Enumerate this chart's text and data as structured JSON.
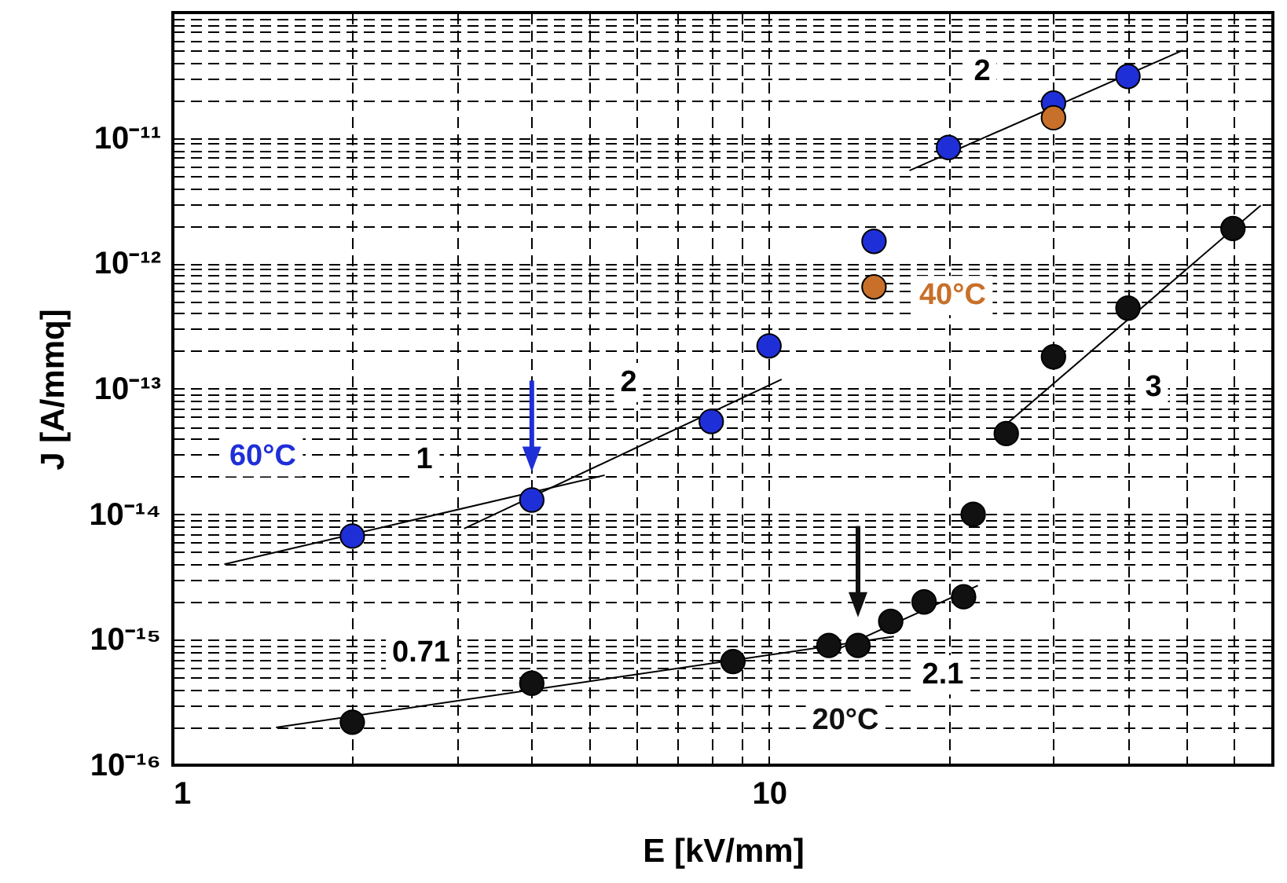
{
  "chart_data": {
    "type": "scatter",
    "xlabel": "E [kV/mm]",
    "ylabel": "J [A/mmq]",
    "log": "xy",
    "grid": true,
    "marker": "circle",
    "xlim": [
      1,
      70
    ],
    "xticks": [
      1,
      {
        "value": 2,
        "label": null
      },
      {
        "value": 3,
        "label": null
      },
      {
        "value": 4,
        "label": null
      },
      {
        "value": 5,
        "label": null
      },
      {
        "value": 6,
        "label": null
      },
      {
        "value": 7,
        "label": null
      },
      {
        "value": 8,
        "label": null
      },
      {
        "value": 9,
        "label": null
      },
      10,
      {
        "value": 20,
        "label": null
      },
      {
        "value": 30,
        "label": null
      },
      {
        "value": 40,
        "label": null
      },
      {
        "value": 50,
        "label": null
      },
      {
        "value": 60,
        "label": null
      },
      {
        "value": 70,
        "label": null
      }
    ],
    "ylim": [
      1e-16,
      1e-10
    ],
    "yticks": [
      {
        "value": 1e-16,
        "label": "10⁻¹⁶"
      },
      {
        "value": 2e-16,
        "label": null
      },
      {
        "value": 3e-16,
        "label": null
      },
      {
        "value": 4e-16,
        "label": null
      },
      {
        "value": 5e-16,
        "label": null
      },
      {
        "value": 6e-16,
        "label": null
      },
      {
        "value": 7e-16,
        "label": null
      },
      {
        "value": 8e-16,
        "label": null
      },
      {
        "value": 9e-16,
        "label": null
      },
      {
        "value": 1e-15,
        "label": "10⁻¹⁵"
      },
      {
        "value": 2e-15,
        "label": null
      },
      {
        "value": 3e-15,
        "label": null
      },
      {
        "value": 4e-15,
        "label": null
      },
      {
        "value": 5e-15,
        "label": null
      },
      {
        "value": 6e-15,
        "label": null
      },
      {
        "value": 7e-15,
        "label": null
      },
      {
        "value": 8e-15,
        "label": null
      },
      {
        "value": 9e-15,
        "label": null
      },
      {
        "value": 1e-14,
        "label": "10⁻¹⁴"
      },
      {
        "value": 2e-14,
        "label": null
      },
      {
        "value": 3e-14,
        "label": null
      },
      {
        "value": 4e-14,
        "label": null
      },
      {
        "value": 5e-14,
        "label": null
      },
      {
        "value": 6e-14,
        "label": null
      },
      {
        "value": 7e-14,
        "label": null
      },
      {
        "value": 8e-14,
        "label": null
      },
      {
        "value": 9e-14,
        "label": null
      },
      {
        "value": 1e-13,
        "label": "10⁻¹³"
      },
      {
        "value": 2e-13,
        "label": null
      },
      {
        "value": 3e-13,
        "label": null
      },
      {
        "value": 4e-13,
        "label": null
      },
      {
        "value": 5e-13,
        "label": null
      },
      {
        "value": 6e-13,
        "label": null
      },
      {
        "value": 7e-13,
        "label": null
      },
      {
        "value": 8e-13,
        "label": null
      },
      {
        "value": 9e-13,
        "label": null
      },
      {
        "value": 1e-12,
        "label": "10⁻¹²"
      },
      {
        "value": 2e-12,
        "label": null
      },
      {
        "value": 3e-12,
        "label": null
      },
      {
        "value": 4e-12,
        "label": null
      },
      {
        "value": 5e-12,
        "label": null
      },
      {
        "value": 6e-12,
        "label": null
      },
      {
        "value": 7e-12,
        "label": null
      },
      {
        "value": 8e-12,
        "label": null
      },
      {
        "value": 9e-12,
        "label": null
      },
      {
        "value": 1e-11,
        "label": "10⁻¹¹"
      },
      {
        "value": 2e-11,
        "label": null
      },
      {
        "value": 3e-11,
        "label": null
      },
      {
        "value": 4e-11,
        "label": null
      },
      {
        "value": 5e-11,
        "label": null
      },
      {
        "value": 6e-11,
        "label": null
      },
      {
        "value": 7e-11,
        "label": null
      },
      {
        "value": 8e-11,
        "label": null
      },
      {
        "value": 9e-11,
        "label": null
      },
      {
        "value": 1e-10,
        "label": null
      }
    ],
    "series": [
      {
        "name": "60°C",
        "color": "#1f2fd8",
        "x": [
          2,
          4,
          8,
          10,
          15,
          20,
          30,
          40
        ],
        "values": [
          6.7e-15,
          1.3e-14,
          5.5e-14,
          2.2e-13,
          1.5e-12,
          8.4e-12,
          1.9e-11,
          3.1e-11
        ]
      },
      {
        "name": "40°C",
        "color": "#c8702a",
        "x": [
          15,
          30
        ],
        "values": [
          6.5e-13,
          1.45e-11
        ]
      },
      {
        "name": "20°C",
        "color": "#111111",
        "x": [
          2,
          4,
          8.7,
          12.6,
          14.1,
          16,
          18.2,
          21.2,
          22,
          25,
          30,
          40,
          60
        ],
        "values": [
          2.2e-16,
          4.5e-16,
          6.7e-16,
          9e-16,
          9e-16,
          1.4e-15,
          2e-15,
          2.2e-15,
          1e-14,
          4.4e-14,
          1.8e-13,
          4.4e-13,
          1.9e-12
        ]
      },
      {
        "type": "line",
        "marker": "none",
        "color": "#000000",
        "x": [
          1.22,
          5.3
        ],
        "values": [
          4e-15,
          2.05e-14
        ]
      },
      {
        "type": "line",
        "marker": "none",
        "color": "#000000",
        "x": [
          3.08,
          10.5
        ],
        "values": [
          7.7e-15,
          1.19e-13
        ]
      },
      {
        "type": "line",
        "marker": "none",
        "color": "#000000",
        "x": [
          17.2,
          49.4
        ],
        "values": [
          5.5e-12,
          5e-11
        ]
      },
      {
        "type": "line",
        "marker": "none",
        "color": "#000000",
        "x": [
          1.49,
          16.2
        ],
        "values": [
          2e-16,
          1.06e-15
        ]
      },
      {
        "type": "line",
        "marker": "none",
        "color": "#000000",
        "x": [
          12.6,
          22.4
        ],
        "values": [
          7.8e-16,
          2.7e-15
        ]
      },
      {
        "type": "line",
        "marker": "none",
        "color": "#000000",
        "x": [
          24.1,
          66.8
        ],
        "values": [
          4.5e-14,
          2.9e-12
        ]
      }
    ],
    "annotations": [
      "1",
      "2",
      "2",
      "3",
      "0.71",
      "2.1"
    ]
  }
}
